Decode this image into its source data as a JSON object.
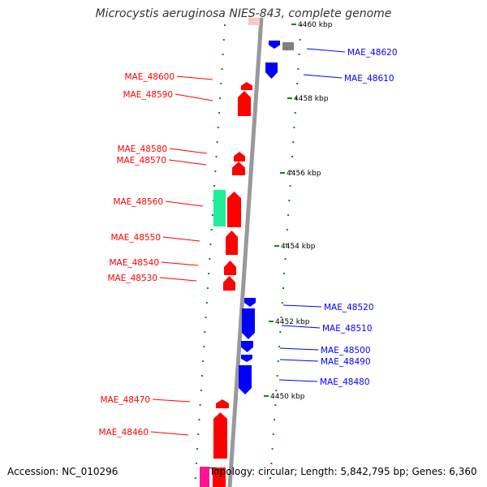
{
  "title": "Microcystis aeruginosa NIES-843, complete genome",
  "footer": {
    "accession": "Accession: NC_010296",
    "topology": "Topology: circular; Length: 5,842,795 bp; Genes: 6,360"
  },
  "colors": {
    "reverse_gene": "#ff0000",
    "forward_gene": "#0000ff",
    "rna_gene": "#22ee99",
    "pink_feature": "#ff1493",
    "grey_feature": "#808080",
    "backbone": "#999999",
    "tick": "#118811"
  },
  "ticks": [
    "4460 kbp",
    "4458 kbp",
    "4456 kbp",
    "4454 kbp",
    "4452 kbp",
    "4450 kbp"
  ],
  "left_labels": [
    "MAE_48600",
    "MAE_48590",
    "MAE_48580",
    "MAE_48570",
    "MAE_48560",
    "MAE_48550",
    "MAE_48540",
    "MAE_48530",
    "MAE_48470",
    "MAE_48460"
  ],
  "right_labels": [
    "MAE_48620",
    "MAE_48610",
    "MAE_48520",
    "MAE_48510",
    "MAE_48500",
    "MAE_48490",
    "MAE_48480"
  ]
}
